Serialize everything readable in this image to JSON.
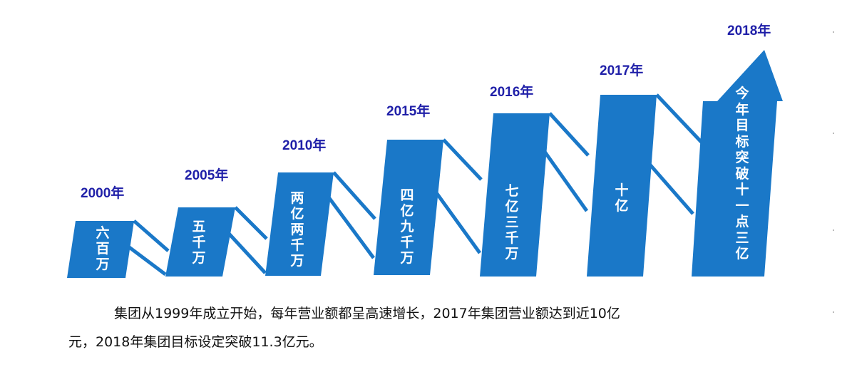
{
  "stages": [
    {
      "year": "2000年",
      "label": "六百万"
    },
    {
      "year": "2005年",
      "label": "五千万"
    },
    {
      "year": "2010年",
      "label": "两亿两千万"
    },
    {
      "year": "2015年",
      "label": "四亿九千万"
    },
    {
      "year": "2016年",
      "label": "七亿三千万"
    },
    {
      "year": "2017年",
      "label": "十亿"
    },
    {
      "year": "2018年",
      "label": "今年目标突破十一点三亿"
    }
  ],
  "colors": {
    "bar": "#1a78c8",
    "connector": "#1a78c8",
    "year_text": "#1f1fa8"
  },
  "paragraph": {
    "line1": "集团从1999年成立开始，每年营业额都呈高速增长，2017年集团营业额达到近10亿",
    "line2": "元，2018年集团目标设定突破11.3亿元。"
  }
}
